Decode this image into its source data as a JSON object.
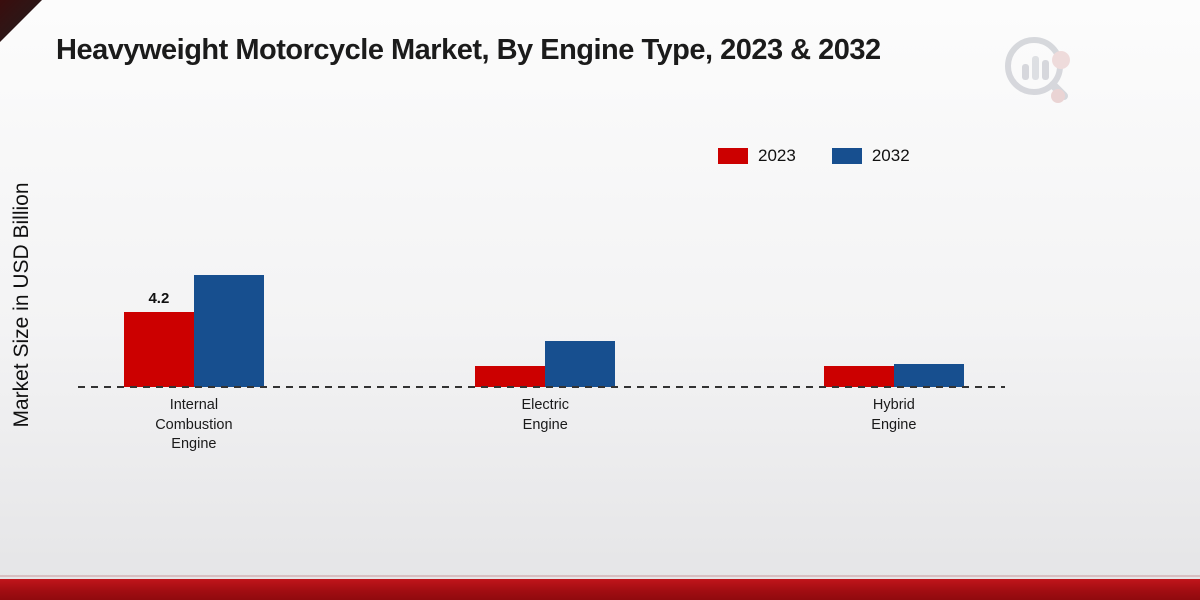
{
  "page": {
    "title": "Heavyweight Motorcycle Market, By Engine Type, 2023 & 2032"
  },
  "chart_data": {
    "type": "bar",
    "title": "Heavyweight Motorcycle Market, By Engine Type, 2023 & 2032",
    "ylabel": "Market Size in USD Billion",
    "xlabel": "",
    "categories": [
      [
        "Internal",
        "Combustion",
        "Engine"
      ],
      [
        "Electric",
        "Engine"
      ],
      [
        "Hybrid",
        "Engine"
      ]
    ],
    "series": [
      {
        "name": "2023",
        "color": "#cc0000",
        "values": [
          4.2,
          1.2,
          1.2
        ],
        "data_labels": [
          "4.2",
          "",
          ""
        ]
      },
      {
        "name": "2032",
        "color": "#174f8f",
        "values": [
          6.3,
          2.6,
          1.3
        ],
        "data_labels": [
          "",
          "",
          ""
        ]
      }
    ],
    "ylim": [
      0,
      7
    ],
    "legend_position": "top-right",
    "grid": false,
    "baseline_style": "dashed"
  },
  "colors": {
    "series_2023": "#cc0000",
    "series_2032": "#174f8f",
    "footer_bar": "#a20d12",
    "background_top": "#fcfcfc",
    "background_bottom": "#e4e4e6"
  },
  "icons": {
    "brand_logo": "bar-chart-magnifier-logo"
  }
}
